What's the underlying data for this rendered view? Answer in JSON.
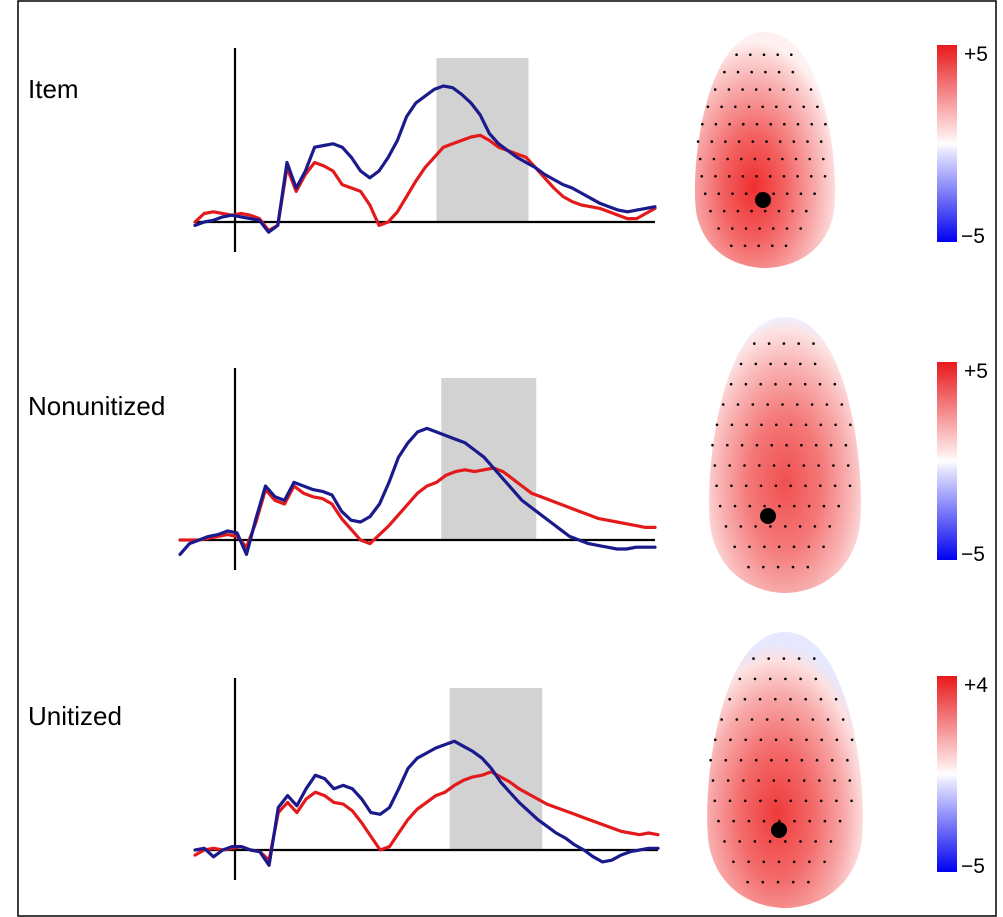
{
  "chart_data": {
    "type": "line",
    "colors": {
      "series_a": "#1a1a8c",
      "series_b": "#e31a1c",
      "window": "#d2d2d2",
      "positive": "#e31a1c",
      "negative": "#0000ff"
    },
    "panels": [
      {
        "label": "Item",
        "scale_max_label": "+5",
        "scale_min_label": "−5",
        "scale_max": 5,
        "scale_min": -5,
        "time_range": [
          0,
          100
        ],
        "amplitude_range": [
          -1,
          9
        ],
        "onset_time": 8,
        "window": [
          52.5,
          72.5
        ],
        "series": [
          {
            "color": "blue",
            "t": [
              0,
              2,
              4,
              6,
              8,
              10,
              12,
              14,
              16,
              18,
              20,
              22,
              24,
              26,
              28,
              30,
              32,
              34,
              36,
              38,
              40,
              42,
              44,
              46,
              48,
              50,
              52,
              54,
              56,
              58,
              60,
              62,
              64,
              66,
              68,
              70,
              72,
              74,
              76,
              78,
              80,
              82,
              84,
              86,
              88,
              90,
              92,
              94,
              96,
              98,
              100
            ],
            "v": [
              -0.2,
              0,
              0.1,
              0.3,
              0.4,
              0.3,
              0.2,
              0.1,
              -0.6,
              -0.2,
              3.5,
              2.0,
              3.0,
              4.4,
              4.5,
              4.6,
              4.4,
              3.8,
              3.0,
              2.6,
              3.0,
              3.8,
              4.8,
              6.2,
              7.0,
              7.4,
              7.8,
              8.0,
              7.9,
              7.5,
              7.0,
              6.3,
              5.2,
              4.6,
              4.2,
              3.8,
              3.5,
              3.2,
              2.8,
              2.5,
              2.2,
              2.0,
              1.7,
              1.4,
              1.1,
              0.9,
              0.7,
              0.6,
              0.7,
              0.8,
              0.9
            ]
          },
          {
            "color": "red",
            "t": [
              0,
              2,
              4,
              6,
              8,
              10,
              12,
              14,
              16,
              18,
              20,
              22,
              24,
              26,
              28,
              30,
              32,
              34,
              36,
              38,
              40,
              42,
              44,
              46,
              48,
              50,
              52,
              54,
              56,
              58,
              60,
              62,
              64,
              66,
              68,
              70,
              72,
              74,
              76,
              78,
              80,
              82,
              84,
              86,
              88,
              90,
              92,
              94,
              96,
              98,
              100
            ],
            "v": [
              0,
              0.5,
              0.6,
              0.5,
              0.4,
              0.5,
              0.4,
              0.2,
              -0.5,
              -0.2,
              3.2,
              1.8,
              2.8,
              3.5,
              3.3,
              3.0,
              2.2,
              2.0,
              1.8,
              1.0,
              -0.2,
              0,
              0.6,
              1.5,
              2.4,
              3.2,
              3.8,
              4.4,
              4.6,
              4.8,
              5.0,
              5.1,
              4.8,
              4.4,
              4.2,
              4.0,
              3.8,
              3.2,
              2.6,
              2.0,
              1.5,
              1.2,
              1.0,
              0.9,
              0.8,
              0.6,
              0.4,
              0.2,
              0.2,
              0.5,
              0.8
            ]
          }
        ]
      },
      {
        "label": "Nonunitized",
        "scale_max_label": "+5",
        "scale_min_label": "−5",
        "scale_max": 5,
        "scale_min": -5,
        "time_range": [
          0,
          100
        ],
        "amplitude_range": [
          -1,
          9
        ],
        "onset_time": 11.5,
        "window": [
          55,
          75
        ],
        "series": [
          {
            "color": "blue",
            "t": [
              0,
              2,
              4,
              6,
              8,
              10,
              12,
              14,
              16,
              18,
              20,
              22,
              24,
              26,
              28,
              30,
              32,
              34,
              36,
              38,
              40,
              42,
              44,
              46,
              48,
              50,
              52,
              54,
              56,
              58,
              60,
              62,
              64,
              66,
              68,
              70,
              72,
              74,
              76,
              78,
              80,
              82,
              84,
              86,
              88,
              90,
              92,
              94,
              96,
              98,
              100
            ],
            "v": [
              -0.8,
              -0.2,
              0,
              0.2,
              0.3,
              0.5,
              0.4,
              -0.8,
              1.2,
              3.0,
              2.4,
              2.2,
              3.2,
              3.0,
              2.8,
              2.7,
              2.5,
              1.6,
              1.1,
              1.0,
              1.3,
              2.0,
              3.2,
              4.6,
              5.4,
              6.0,
              6.2,
              6.0,
              5.8,
              5.6,
              5.4,
              5.0,
              4.6,
              4.0,
              3.4,
              2.8,
              2.2,
              1.8,
              1.4,
              1.0,
              0.6,
              0.2,
              0,
              -0.2,
              -0.3,
              -0.4,
              -0.5,
              -0.5,
              -0.4,
              -0.4,
              -0.4
            ]
          },
          {
            "color": "red",
            "t": [
              0,
              2,
              4,
              6,
              8,
              10,
              12,
              14,
              16,
              18,
              20,
              22,
              24,
              26,
              28,
              30,
              32,
              34,
              36,
              38,
              40,
              42,
              44,
              46,
              48,
              50,
              52,
              54,
              56,
              58,
              60,
              62,
              64,
              66,
              68,
              70,
              72,
              74,
              76,
              78,
              80,
              82,
              84,
              86,
              88,
              90,
              92,
              94,
              96,
              98,
              100
            ],
            "v": [
              0,
              0,
              0,
              0.1,
              0.2,
              0.3,
              0.2,
              -0.4,
              1.0,
              2.8,
              2.2,
              2.0,
              3.0,
              2.6,
              2.4,
              2.3,
              2.0,
              1.2,
              0.6,
              0,
              -0.2,
              0.3,
              0.8,
              1.4,
              2.0,
              2.6,
              3.0,
              3.2,
              3.6,
              3.8,
              3.9,
              3.8,
              3.9,
              4.0,
              3.8,
              3.4,
              3.0,
              2.6,
              2.4,
              2.2,
              2.0,
              1.8,
              1.6,
              1.4,
              1.2,
              1.1,
              1.0,
              0.9,
              0.8,
              0.7,
              0.7
            ]
          }
        ]
      },
      {
        "label": "Unitized",
        "scale_max_label": "+4",
        "scale_min_label": "−5",
        "scale_max": 4,
        "scale_min": -5,
        "time_range": [
          0,
          100
        ],
        "amplitude_range": [
          -1,
          9
        ],
        "onset_time": 9,
        "window": [
          55,
          75
        ],
        "series": [
          {
            "color": "blue",
            "t": [
              0,
              2,
              4,
              6,
              8,
              10,
              12,
              14,
              16,
              18,
              20,
              22,
              24,
              26,
              28,
              30,
              32,
              34,
              36,
              38,
              40,
              42,
              44,
              46,
              48,
              50,
              52,
              54,
              56,
              58,
              60,
              62,
              64,
              66,
              68,
              70,
              72,
              74,
              76,
              78,
              80,
              82,
              84,
              86,
              88,
              90,
              92,
              94,
              96,
              98,
              100
            ],
            "v": [
              0,
              0.1,
              -0.4,
              0,
              0.2,
              0.2,
              0,
              -0.1,
              -0.9,
              2.5,
              3.2,
              2.6,
              3.6,
              4.4,
              4.2,
              3.6,
              3.8,
              3.6,
              3.0,
              2.2,
              2.1,
              2.5,
              3.6,
              4.8,
              5.4,
              5.7,
              6.0,
              6.2,
              6.4,
              6.1,
              5.8,
              5.4,
              4.8,
              4.0,
              3.4,
              2.8,
              2.3,
              1.8,
              1.4,
              1.0,
              0.7,
              0.3,
              0,
              -0.4,
              -0.7,
              -0.6,
              -0.3,
              -0.1,
              0,
              0.1,
              0.1
            ]
          },
          {
            "color": "red",
            "t": [
              0,
              2,
              4,
              6,
              8,
              10,
              12,
              14,
              16,
              18,
              20,
              22,
              24,
              26,
              28,
              30,
              32,
              34,
              36,
              38,
              40,
              42,
              44,
              46,
              48,
              50,
              52,
              54,
              56,
              58,
              60,
              62,
              64,
              66,
              68,
              70,
              72,
              74,
              76,
              78,
              80,
              82,
              84,
              86,
              88,
              90,
              92,
              94,
              96,
              98,
              100
            ],
            "v": [
              -0.3,
              0,
              0.1,
              0,
              0.1,
              0.2,
              0,
              -0.1,
              -0.6,
              2.2,
              2.8,
              2.2,
              3.0,
              3.4,
              3.2,
              2.8,
              2.7,
              2.3,
              1.6,
              0.8,
              0,
              0.2,
              1.0,
              1.8,
              2.4,
              2.8,
              3.2,
              3.4,
              3.8,
              4.1,
              4.3,
              4.4,
              4.6,
              4.3,
              4.0,
              3.6,
              3.3,
              3.0,
              2.7,
              2.5,
              2.3,
              2.1,
              1.9,
              1.7,
              1.5,
              1.3,
              1.1,
              1.0,
              0.9,
              1.0,
              0.9
            ]
          }
        ]
      }
    ]
  }
}
